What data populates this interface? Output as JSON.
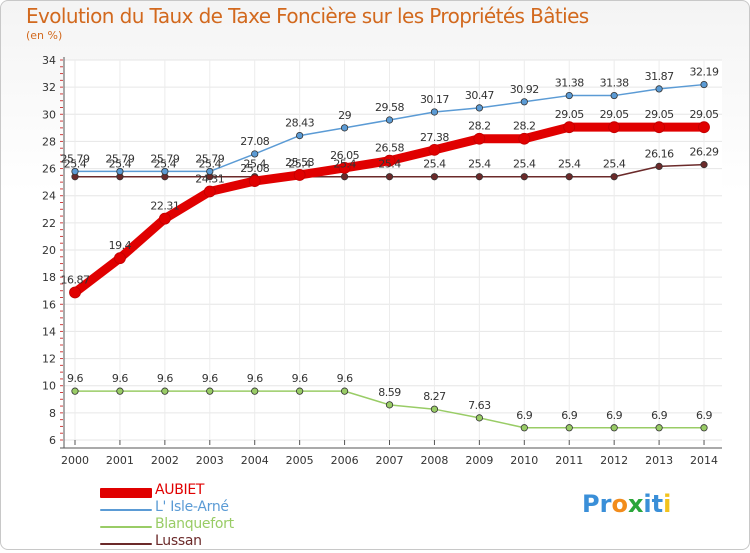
{
  "title": "Evolution du Taux de Taxe Foncière sur les Propriétés Bâties",
  "subtitle": "(en %)",
  "logo": {
    "letters": [
      "P",
      "r",
      "o",
      "x",
      "i",
      "t",
      "i"
    ],
    "colors": [
      "#3a8fd8",
      "#3a8fd8",
      "#f28c1c",
      "#2aa63a",
      "#3a8fd8",
      "#3a8fd8",
      "#f2c21c"
    ]
  },
  "chart_data": {
    "type": "line",
    "x": [
      2000,
      2001,
      2002,
      2003,
      2004,
      2005,
      2006,
      2007,
      2008,
      2009,
      2010,
      2011,
      2012,
      2013,
      2014
    ],
    "ylim": [
      6,
      34
    ],
    "yticks": [
      6,
      8,
      10,
      12,
      14,
      16,
      18,
      20,
      22,
      24,
      26,
      28,
      30,
      32,
      34
    ],
    "series": [
      {
        "name": "AUBIET",
        "color": "#e00000",
        "width": 9,
        "values": [
          16.87,
          19.4,
          22.31,
          24.31,
          25.08,
          25.53,
          26.05,
          26.58,
          27.38,
          28.2,
          28.2,
          29.05,
          29.05,
          29.05,
          29.05
        ],
        "labels": [
          "16.87",
          "19.4",
          "22.31",
          "24.31",
          "25.08",
          "25.53",
          "26.05",
          "26.58",
          "27.38",
          "28.2",
          "28.2",
          "29.05",
          "29.05",
          "29.05",
          "29.05"
        ]
      },
      {
        "name": "L' Isle-Arné",
        "color": "#5b9bd5",
        "width": 1.5,
        "values": [
          25.79,
          25.79,
          25.79,
          25.79,
          27.08,
          28.43,
          29,
          29.58,
          30.17,
          30.47,
          30.92,
          31.38,
          31.38,
          31.87,
          32.19
        ],
        "labels": [
          "25.79",
          "25.79",
          "25.79",
          "25.79",
          "27.08",
          "28.43",
          "29",
          "29.58",
          "30.17",
          "30.47",
          "30.92",
          "31.38",
          "31.38",
          "31.87",
          "32.19"
        ]
      },
      {
        "name": "Blanquefort",
        "color": "#99cc66",
        "width": 1.5,
        "values": [
          9.6,
          9.6,
          9.6,
          9.6,
          9.6,
          9.6,
          9.6,
          8.59,
          8.27,
          7.63,
          6.9,
          6.9,
          6.9,
          6.9,
          6.9
        ],
        "labels": [
          "9.6",
          "9.6",
          "9.6",
          "9.6",
          "9.6",
          "9.6",
          "9.6",
          "8.59",
          "8.27",
          "7.63",
          "6.9",
          "6.9",
          "6.9",
          "6.9",
          "6.9"
        ]
      },
      {
        "name": "Lussan",
        "color": "#6b2a2a",
        "width": 1.5,
        "values": [
          25.4,
          25.4,
          25.4,
          25.4,
          25.4,
          25.4,
          25.4,
          25.4,
          25.4,
          25.4,
          25.4,
          25.4,
          25.4,
          26.16,
          26.29
        ],
        "labels": [
          "25.4",
          "25.4",
          "25.4",
          "25.4",
          "25.4",
          "25.4",
          "25.4",
          "25.4",
          "25.4",
          "25.4",
          "25.4",
          "25.4",
          "25.4",
          "26.16",
          "26.29"
        ]
      }
    ]
  }
}
